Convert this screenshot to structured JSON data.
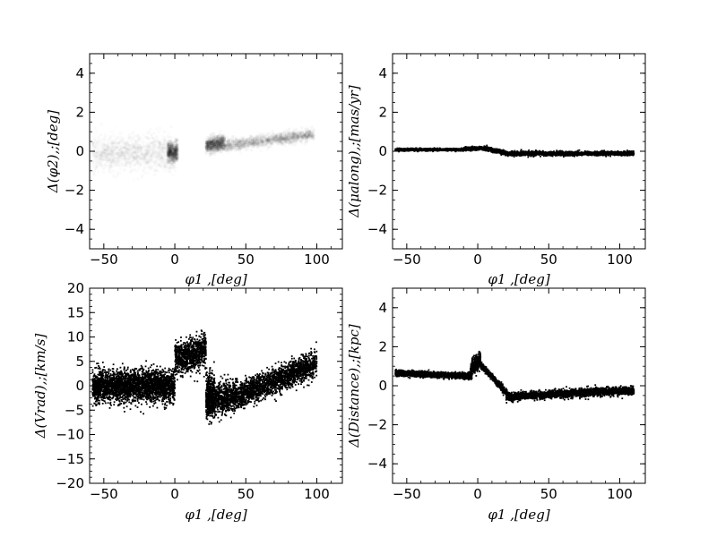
{
  "chart_data": [
    {
      "id": "phi2",
      "type": "heatmap",
      "xlabel": "φ1 ,[deg]",
      "ylabel": "Δ(φ2),;[deg]",
      "xlim": [
        -60,
        118
      ],
      "ylim": [
        -5,
        5
      ],
      "xticks": [
        -50,
        0,
        50,
        100
      ],
      "yticks": [
        -4,
        -2,
        0,
        2,
        4
      ],
      "grid": false,
      "segments": [
        {
          "x": [
            -58,
            1
          ],
          "y0": -0.1,
          "slope": 0.0,
          "spread": 0.45,
          "density": 0.35,
          "count": 1400
        },
        {
          "x": [
            -5,
            2
          ],
          "y0": -0.05,
          "slope": 0.0,
          "spread": 0.25,
          "density": 0.9,
          "count": 500
        },
        {
          "x": [
            22,
            98
          ],
          "y0": 0.15,
          "slope": 0.0095,
          "spread": 0.15,
          "density": 0.55,
          "count": 1600
        },
        {
          "x": [
            22,
            35
          ],
          "y0": 0.35,
          "slope": 0.01,
          "spread": 0.18,
          "density": 0.85,
          "count": 500
        }
      ]
    },
    {
      "id": "pm",
      "type": "scatter",
      "xlabel": "φ1 ,[deg]",
      "ylabel": "Δ(μalong),;[mas/yr]",
      "xlim": [
        -60,
        118
      ],
      "ylim": [
        -5,
        5
      ],
      "xticks": [
        -50,
        0,
        50,
        100
      ],
      "yticks": [
        -4,
        -2,
        0,
        2,
        4
      ],
      "grid": false,
      "segments": [
        {
          "x": [
            -58,
            -10
          ],
          "y0": 0.08,
          "slope": 0.0,
          "spread": 0.03,
          "count": 1200
        },
        {
          "x": [
            -10,
            5
          ],
          "y0": 0.12,
          "slope": 0.003,
          "spread": 0.04,
          "count": 500
        },
        {
          "x": [
            5,
            20
          ],
          "y0": 0.15,
          "slope": -0.016,
          "spread": 0.05,
          "count": 500
        },
        {
          "x": [
            20,
            110
          ],
          "y0": -0.12,
          "slope": 0.0,
          "spread": 0.05,
          "count": 2000
        }
      ]
    },
    {
      "id": "vrad",
      "type": "scatter",
      "xlabel": "φ1 ,[deg]",
      "ylabel": "Δ(Vrad),;[km/s]",
      "xlim": [
        -60,
        118
      ],
      "ylim": [
        -20,
        20
      ],
      "xticks": [
        -50,
        0,
        50,
        100
      ],
      "yticks": [
        -20,
        -15,
        -10,
        -5,
        0,
        5,
        10,
        15,
        20
      ],
      "grid": false,
      "segments": [
        {
          "x": [
            -58,
            0
          ],
          "y0": 0.0,
          "slope": 0.0,
          "spread": 1.6,
          "count": 2800
        },
        {
          "x": [
            0,
            22
          ],
          "y0": 5.5,
          "slope": 0.08,
          "spread": 1.6,
          "count": 900
        },
        {
          "x": [
            22,
            28
          ],
          "y0": -2.0,
          "slope": 0.0,
          "spread": 2.5,
          "count": 300
        },
        {
          "x": [
            22,
            45
          ],
          "y0": -3.0,
          "slope": 0.05,
          "spread": 1.6,
          "count": 900
        },
        {
          "x": [
            45,
            100
          ],
          "y0": -2.0,
          "slope": 0.12,
          "spread": 1.3,
          "count": 1800
        }
      ]
    },
    {
      "id": "dist",
      "type": "scatter",
      "xlabel": "φ1 ,[deg]",
      "ylabel": "Δ(Distance),;[kpc]",
      "xlim": [
        -60,
        118
      ],
      "ylim": [
        -5,
        5
      ],
      "xticks": [
        -50,
        0,
        50,
        100
      ],
      "yticks": [
        -4,
        -2,
        0,
        2,
        4
      ],
      "grid": false,
      "segments": [
        {
          "x": [
            -58,
            -5
          ],
          "y0": 0.65,
          "slope": -0.003,
          "spread": 0.07,
          "count": 1800
        },
        {
          "x": [
            -5,
            2
          ],
          "y0": 0.8,
          "slope": 0.08,
          "spread": 0.2,
          "count": 400
        },
        {
          "x": [
            2,
            25
          ],
          "y0": 1.1,
          "slope": -0.08,
          "spread": 0.08,
          "count": 700
        },
        {
          "x": [
            20,
            110
          ],
          "y0": -0.55,
          "slope": 0.0035,
          "spread": 0.1,
          "count": 2200
        }
      ]
    }
  ]
}
